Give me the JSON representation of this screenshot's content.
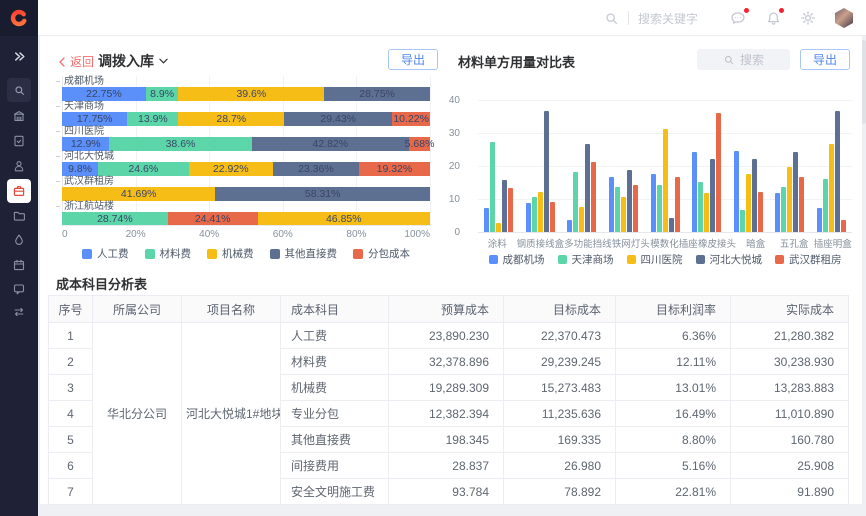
{
  "topbar": {
    "search_placeholder": "搜索关键字",
    "icons": [
      "search-icon",
      "messages-icon",
      "notifications-icon",
      "settings-icon",
      "avatar"
    ],
    "badge_color": "#F5222D"
  },
  "sidebar": {
    "icons": [
      "expand-icon",
      "search-icon",
      "building-icon",
      "document-check-icon",
      "user-icon",
      "briefcase-icon",
      "folder-icon",
      "drop-icon",
      "calendar-icon",
      "chat-icon",
      "transfer-icon"
    ],
    "active_icon": "briefcase-icon",
    "active_color": "#E0493F"
  },
  "panel_left": {
    "back_label": "返回",
    "title": "调拨入库",
    "export_label": "导出",
    "chart_data": {
      "type": "bar",
      "orientation": "horizontal-stacked-percent",
      "legend": [
        "人工费",
        "材料费",
        "机械费",
        "其他直接费",
        "分包成本"
      ],
      "legend_colors": [
        "#5B8FF9",
        "#5CD6A9",
        "#F6BD16",
        "#5D7092",
        "#E8684A"
      ],
      "xticks": [
        "0",
        "20%",
        "40%",
        "60%",
        "80%",
        "100%"
      ],
      "categories": [
        "成都机场",
        "天津商场",
        "四川医院",
        "河北大悦城",
        "武汉群租房",
        "浙江航站楼"
      ],
      "bars": [
        {
          "category": "成都机场",
          "segments": [
            {
              "series": 0,
              "label": "22.75%"
            },
            {
              "series": 1,
              "label": "8.9%"
            },
            {
              "series": 2,
              "label": "39.6%"
            },
            {
              "series": 3,
              "label": "28.75%"
            }
          ]
        },
        {
          "category": "天津商场",
          "segments": [
            {
              "series": 0,
              "label": "17.75%"
            },
            {
              "series": 1,
              "label": "13.9%"
            },
            {
              "series": 2,
              "label": "28.7%"
            },
            {
              "series": 3,
              "label": "29.43%"
            },
            {
              "series": 4,
              "label": "10.22%"
            }
          ]
        },
        {
          "category": "四川医院",
          "segments": [
            {
              "series": 0,
              "label": "12.9%"
            },
            {
              "series": 1,
              "label": "38.6%"
            },
            {
              "series": 3,
              "label": "42.82%"
            },
            {
              "series": 4,
              "label": "5.68%"
            }
          ]
        },
        {
          "category": "河北大悦城",
          "segments": [
            {
              "series": 0,
              "label": "9.8%"
            },
            {
              "series": 1,
              "label": "24.6%"
            },
            {
              "series": 2,
              "label": "22.92%"
            },
            {
              "series": 3,
              "label": "23.36%"
            },
            {
              "series": 4,
              "label": "19.32%"
            }
          ]
        },
        {
          "category": "武汉群租房",
          "segments": [
            {
              "series": 2,
              "label": "41.69%"
            },
            {
              "series": 3,
              "label": "58.31%"
            }
          ]
        },
        {
          "category": "浙江航站楼",
          "segments": [
            {
              "series": 1,
              "label": "28.74%"
            },
            {
              "series": 4,
              "label": "24.41%"
            },
            {
              "series": 2,
              "label": "46.85%"
            }
          ]
        }
      ]
    }
  },
  "panel_right": {
    "title": "材料单方用量对比表",
    "search_placeholder": "搜索",
    "export_label": "导出",
    "chart_data": {
      "type": "bar",
      "orientation": "vertical-grouped",
      "categories": [
        "涂料",
        "钢质接线盒",
        "多功能挡线",
        "铁网灯头",
        "模数化插座",
        "橡皮接头",
        "暗盒",
        "五孔盒",
        "插座明盒"
      ],
      "yticks": [
        0,
        10,
        20,
        30,
        40
      ],
      "ylim": [
        0,
        40
      ],
      "series": [
        {
          "name": "成都机场",
          "color": "#5B8FF9",
          "values": [
            7.5,
            9,
            4,
            17,
            18,
            24.5,
            25,
            12,
            7.5
          ]
        },
        {
          "name": "天津商场",
          "color": "#5CD6A9",
          "values": [
            27.5,
            11,
            18.5,
            14,
            14.5,
            15.5,
            7,
            14,
            16.5
          ]
        },
        {
          "name": "四川医院",
          "color": "#F6BD16",
          "values": [
            3,
            12.5,
            8,
            11,
            31.5,
            12,
            18,
            20,
            27
          ]
        },
        {
          "name": "河北大悦城",
          "color": "#5D7092",
          "values": [
            16,
            37,
            27,
            19,
            4.5,
            22.5,
            22.5,
            24.5,
            37
          ]
        },
        {
          "name": "武汉群租房",
          "color": "#E8684A",
          "values": [
            13.5,
            9.5,
            21.5,
            14.5,
            17,
            36.5,
            12.5,
            17,
            4
          ]
        }
      ]
    }
  },
  "table": {
    "title": "成本科目分析表",
    "columns": [
      "序号",
      "所属公司",
      "项目名称",
      "成本科目",
      "预算成本",
      "目标成本",
      "目标利润率",
      "实际成本"
    ],
    "merged": {
      "company": "华北分公司",
      "project": "河北大悦城1#地块项目"
    },
    "rows": [
      {
        "no": "1",
        "subject": "人工费",
        "budget": "23,890.230",
        "target": "22,370.473",
        "margin": "6.36%",
        "actual": "21,280.382"
      },
      {
        "no": "2",
        "subject": "材料费",
        "budget": "32,378.896",
        "target": "29,239.245",
        "margin": "12.11%",
        "actual": "30,238.930"
      },
      {
        "no": "3",
        "subject": "机械费",
        "budget": "19,289.309",
        "target": "15,273.483",
        "margin": "13.01%",
        "actual": "13,283.883"
      },
      {
        "no": "4",
        "subject": "专业分包",
        "budget": "12,382.394",
        "target": "11,235.636",
        "margin": "16.49%",
        "actual": "11,010.890"
      },
      {
        "no": "5",
        "subject": "其他直接费",
        "budget": "198.345",
        "target": "169.335",
        "margin": "8.80%",
        "actual": "160.780"
      },
      {
        "no": "6",
        "subject": "间接费用",
        "budget": "28.837",
        "target": "26.980",
        "margin": "5.16%",
        "actual": "25.908"
      },
      {
        "no": "7",
        "subject": "安全文明施工费",
        "budget": "93.784",
        "target": "78.892",
        "margin": "22.81%",
        "actual": "91.890"
      }
    ]
  },
  "colors": {
    "accent_blue": "#4E86F0",
    "back_red": "#F56C6C",
    "sidebar_bg": "#1F2236",
    "logo_bg": "#191B2F",
    "page_bg": "#EEF0F4"
  }
}
